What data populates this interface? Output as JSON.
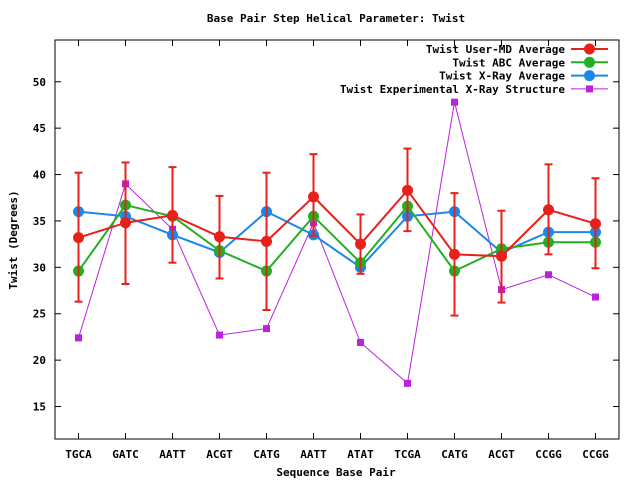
{
  "chart_data": {
    "type": "line",
    "title": "Base Pair Step Helical Parameter: Twist",
    "xlabel": "Sequence Base Pair",
    "ylabel": "Twist (Degrees)",
    "categories": [
      "TGCA",
      "GATC",
      "AATT",
      "ACGT",
      "CATG",
      "AATT",
      "ATAT",
      "TCGA",
      "CATG",
      "ACGT",
      "CCGG",
      "CCGG"
    ],
    "ylim": [
      11.5,
      54.5
    ],
    "yticks": [
      15,
      20,
      25,
      30,
      35,
      40,
      45,
      50
    ],
    "grid": false,
    "legend_position": "top-right",
    "series": [
      {
        "name": "Twist User-MD Average",
        "color": "#e8201c",
        "marker": "circle",
        "values": [
          33.2,
          34.8,
          35.6,
          33.3,
          32.8,
          37.6,
          32.5,
          38.3,
          31.4,
          31.2,
          36.2,
          34.7
        ],
        "error_low": [
          26.3,
          28.2,
          30.5,
          28.8,
          25.4,
          33.4,
          29.3,
          33.9,
          24.8,
          26.2,
          31.4,
          29.9
        ],
        "error_high": [
          40.2,
          41.3,
          40.8,
          37.7,
          40.2,
          42.2,
          35.7,
          42.8,
          38.0,
          36.1,
          41.1,
          39.6
        ]
      },
      {
        "name": "Twist ABC Average",
        "color": "#22b022",
        "marker": "circle",
        "values": [
          29.6,
          36.7,
          35.5,
          31.8,
          29.6,
          35.5,
          30.5,
          36.6,
          29.6,
          32.0,
          32.7,
          32.7
        ]
      },
      {
        "name": "Twist X-Ray Average",
        "color": "#1a88e8",
        "marker": "circle",
        "values": [
          36.0,
          35.5,
          33.5,
          31.6,
          36.0,
          33.5,
          30.0,
          35.5,
          36.0,
          31.6,
          33.8,
          33.8
        ]
      },
      {
        "name": "Twist Experimental X-Ray Structure",
        "color": "#bb22dd",
        "marker": "square",
        "values": [
          22.4,
          39.0,
          34.1,
          22.7,
          23.4,
          34.8,
          21.9,
          17.5,
          47.8,
          27.6,
          29.2,
          26.8
        ]
      }
    ]
  }
}
